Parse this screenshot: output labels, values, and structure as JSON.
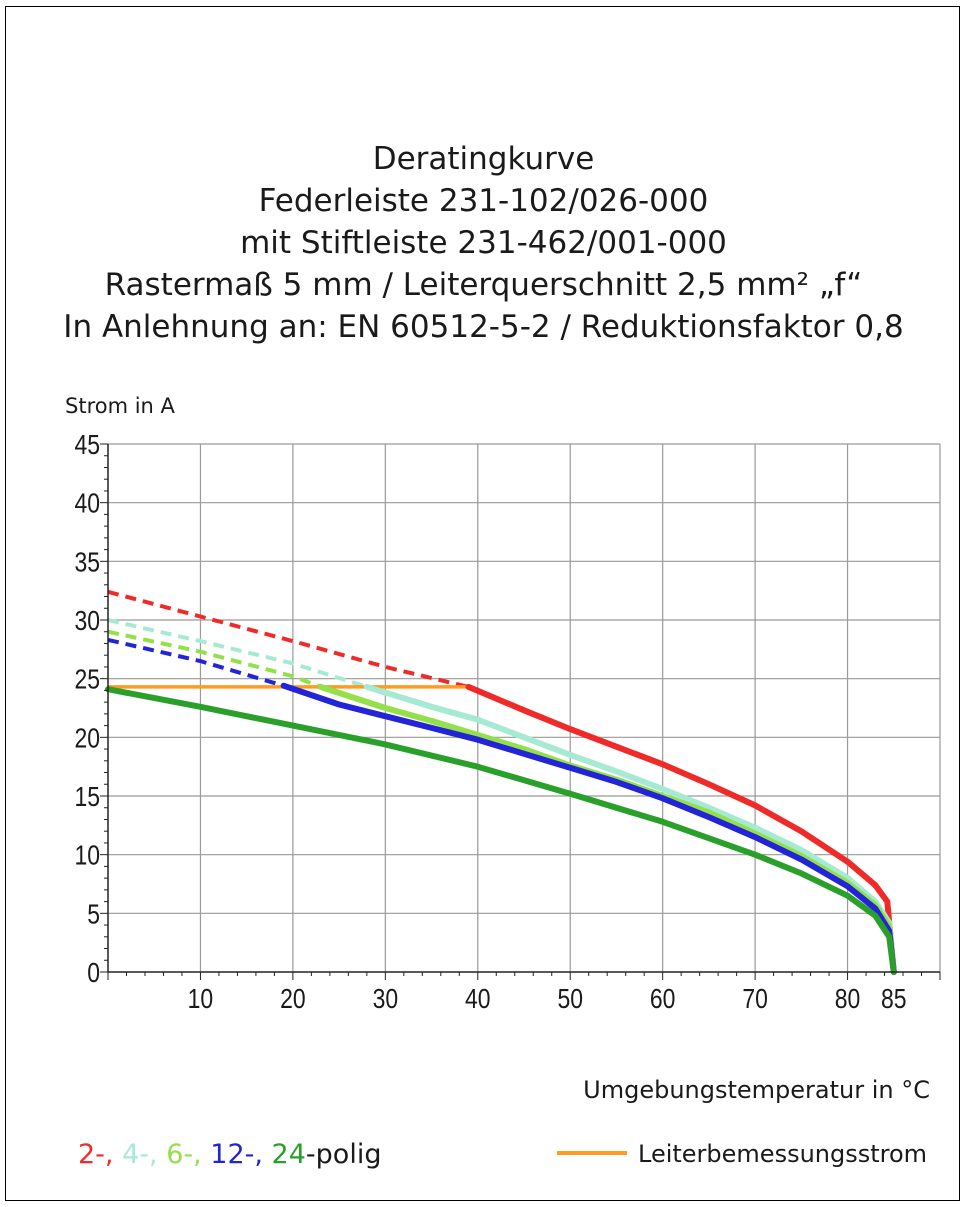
{
  "colors": {
    "red": "#ee2b28",
    "aqua": "#a6ead4",
    "lightgreen": "#93e04a",
    "blue": "#2323d8",
    "green": "#2aa02a",
    "orange": "#ff9a22",
    "grid": "#9a9a9a",
    "text": "#1a1a1a"
  },
  "chart_data": {
    "type": "line",
    "title_lines": [
      "Deratingkurve",
      "Federleiste 231-102/026-000",
      "mit Stiftleiste 231-462/001-000",
      "Rastermaß 5 mm / Leiterquerschnitt 2,5 mm² „f“",
      "In Anlehnung an: EN 60512-5-2 / Reduktionsfaktor 0,8"
    ],
    "ylabel": "Strom in A",
    "xlabel": "Umgebungstemperatur in °C",
    "xlim": [
      0,
      90
    ],
    "ylim": [
      0,
      45
    ],
    "x_ticks": [
      10,
      20,
      30,
      40,
      50,
      60,
      70,
      80,
      85
    ],
    "y_ticks": [
      0,
      5,
      10,
      15,
      20,
      25,
      30,
      35,
      40,
      45
    ],
    "grid": true,
    "rated_current": {
      "name": "Leiterbemessungsstrom",
      "color": "orange",
      "x": [
        0,
        39
      ],
      "y": [
        24.3,
        24.3
      ]
    },
    "series": [
      {
        "color": "red",
        "dashed": {
          "x": [
            0,
            10,
            20,
            30,
            39
          ],
          "y": [
            32.4,
            30.3,
            28.2,
            26.0,
            24.3
          ]
        },
        "solid": {
          "x": [
            39,
            45,
            50,
            55,
            60,
            65,
            70,
            75,
            80,
            83,
            84.3,
            85
          ],
          "y": [
            24.3,
            22.3,
            20.7,
            19.2,
            17.7,
            16.0,
            14.2,
            12.0,
            9.4,
            7.4,
            6.0,
            0
          ]
        }
      },
      {
        "color": "aqua",
        "dashed": {
          "x": [
            0,
            10,
            20,
            28
          ],
          "y": [
            30.0,
            28.2,
            26.3,
            24.3
          ]
        },
        "solid": {
          "x": [
            28,
            35,
            40,
            45,
            50,
            55,
            60,
            65,
            70,
            75,
            80,
            83,
            84.5,
            85
          ],
          "y": [
            24.3,
            22.6,
            21.5,
            20.0,
            18.5,
            17.1,
            15.6,
            14.0,
            12.3,
            10.4,
            8.0,
            6.0,
            4.2,
            0
          ]
        }
      },
      {
        "color": "lightgreen",
        "dashed": {
          "x": [
            0,
            10,
            20,
            23
          ],
          "y": [
            29.0,
            27.3,
            25.2,
            24.3
          ]
        },
        "solid": {
          "x": [
            23,
            30,
            35,
            40,
            45,
            50,
            55,
            60,
            65,
            70,
            75,
            80,
            83,
            84.5,
            85
          ],
          "y": [
            24.3,
            22.5,
            21.4,
            20.2,
            19.0,
            17.6,
            16.4,
            15.0,
            13.6,
            11.8,
            9.9,
            7.6,
            5.7,
            3.9,
            0
          ]
        }
      },
      {
        "color": "blue",
        "dashed": {
          "x": [
            0,
            10,
            19
          ],
          "y": [
            28.3,
            26.5,
            24.4
          ]
        },
        "solid": {
          "x": [
            19,
            25,
            30,
            35,
            40,
            45,
            50,
            55,
            60,
            65,
            70,
            75,
            80,
            83,
            84.5,
            85
          ],
          "y": [
            24.4,
            22.8,
            21.8,
            20.8,
            19.8,
            18.6,
            17.4,
            16.2,
            14.8,
            13.2,
            11.5,
            9.6,
            7.3,
            5.4,
            3.5,
            0
          ]
        }
      },
      {
        "color": "green",
        "solid": {
          "x": [
            0,
            10,
            20,
            30,
            40,
            50,
            60,
            70,
            75,
            80,
            83,
            84.5,
            85
          ],
          "y": [
            24.1,
            22.6,
            21.0,
            19.4,
            17.5,
            15.2,
            12.8,
            10.0,
            8.4,
            6.5,
            4.8,
            3.0,
            0
          ]
        }
      }
    ],
    "legend": {
      "polig_parts": [
        {
          "text": "2-,",
          "color": "red"
        },
        {
          "text": "4-,",
          "color": "aqua"
        },
        {
          "text": "6-,",
          "color": "lightgreen"
        },
        {
          "text": "12-,",
          "color": "blue"
        },
        {
          "text": "24",
          "color": "green"
        },
        {
          "text": "-polig",
          "color": "text"
        }
      ],
      "rated_label": "Leiterbemessungsstrom",
      "placement": "bottom"
    }
  }
}
